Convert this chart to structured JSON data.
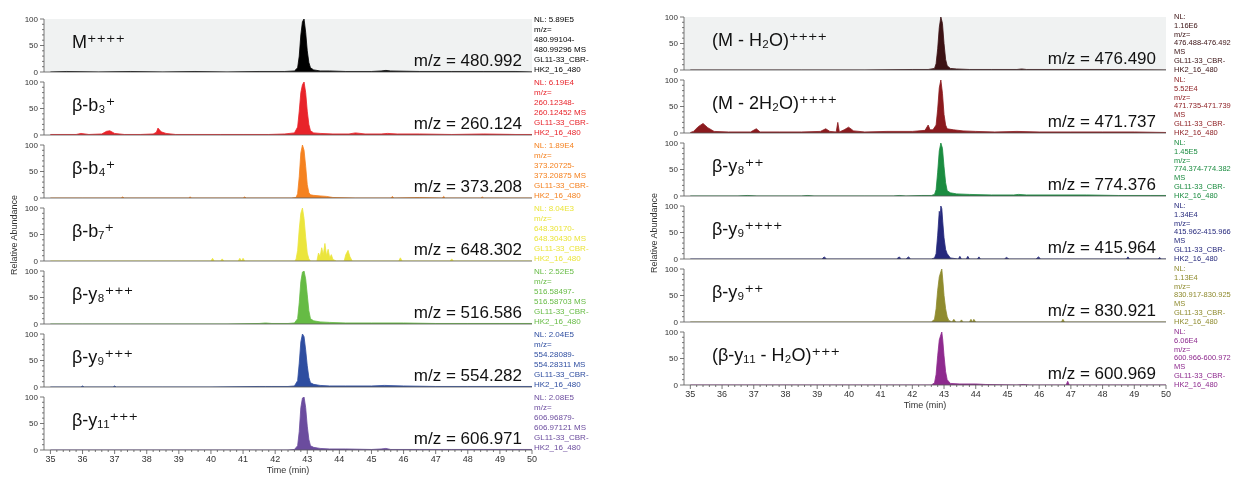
{
  "chart_data": [
    {
      "type": "area",
      "title": "M⁺⁺⁺⁺",
      "annotations": [
        "m/z = 480.992",
        "NL: 5.89E5\nm/z=\n480.99104-\n480.99296 MS\nGL11-33_CBR-\nHK2_16_480"
      ],
      "color": "#000000",
      "x": [
        35,
        35.5,
        36.5,
        37.5,
        38.5,
        39.5,
        40.5,
        41.5,
        42.3,
        42.6,
        42.7,
        42.75,
        42.8,
        42.85,
        42.9,
        42.95,
        43.0,
        43.05,
        43.1,
        43.2,
        43.4,
        43.7,
        44.2,
        45.0,
        45.3,
        45.45,
        45.6,
        46.5,
        47.5,
        48.5,
        49.5,
        50
      ],
      "values": [
        0,
        1,
        0,
        1,
        0,
        1,
        0,
        1,
        1,
        2,
        8,
        30,
        70,
        95,
        100,
        75,
        40,
        18,
        8,
        4,
        2,
        2,
        1,
        1,
        2,
        3,
        2,
        1,
        1,
        1,
        1,
        0
      ],
      "bands": [
        {
          "axis": "x",
          "from": 34.8,
          "to": 50,
          "color": "#f0f2f2"
        }
      ],
      "xlim": [
        34.8,
        50
      ],
      "ylim": [
        0,
        100
      ],
      "yticks": [
        0,
        {
          "value": 10,
          "label": null
        },
        {
          "value": 20,
          "label": null
        },
        {
          "value": 30,
          "label": null
        },
        {
          "value": 40,
          "label": null
        },
        50,
        {
          "value": 60,
          "label": null
        },
        {
          "value": 70,
          "label": null
        },
        {
          "value": 80,
          "label": null
        },
        {
          "value": 90,
          "label": null
        },
        100
      ],
      "tick_labels": "y"
    },
    {
      "type": "area",
      "title": "β-b₃⁺",
      "annotations": [
        "m/z = 260.124",
        "NL: 6.19E4\nm/z=\n260.12348-\n260.12452 MS\nGL11-33_CBR-\nHK2_16_480"
      ],
      "color": "#e8232a",
      "x": [
        35,
        35.3,
        35.8,
        35.95,
        36.2,
        36.6,
        36.75,
        36.85,
        37.0,
        37.3,
        37.8,
        38.2,
        38.3,
        38.35,
        38.45,
        38.6,
        38.9,
        39.5,
        40.3,
        41.0,
        41.8,
        42.3,
        42.6,
        42.7,
        42.75,
        42.8,
        42.85,
        42.9,
        42.95,
        43.0,
        43.05,
        43.1,
        43.2,
        43.4,
        43.8,
        44.3,
        44.5,
        44.8,
        45.3,
        45.5,
        45.8,
        46.5,
        47.5,
        48.5,
        49.5,
        50
      ],
      "values": [
        1,
        1,
        1,
        3,
        1,
        2,
        7,
        8,
        3,
        1,
        1,
        2,
        5,
        13,
        6,
        3,
        1,
        1,
        1,
        1,
        1,
        2,
        4,
        15,
        45,
        80,
        95,
        100,
        80,
        45,
        20,
        8,
        4,
        3,
        2,
        2,
        4,
        2,
        2,
        3,
        2,
        2,
        1,
        2,
        1,
        1
      ],
      "xlim": [
        34.8,
        50
      ],
      "ylim": [
        0,
        100
      ],
      "yticks": [
        0,
        {
          "value": 10,
          "label": null
        },
        {
          "value": 20,
          "label": null
        },
        {
          "value": 30,
          "label": null
        },
        {
          "value": 40,
          "label": null
        },
        50,
        {
          "value": 60,
          "label": null
        },
        {
          "value": 70,
          "label": null
        },
        {
          "value": 80,
          "label": null
        },
        {
          "value": 90,
          "label": null
        },
        100
      ],
      "tick_labels": "y"
    },
    {
      "type": "area",
      "title": "β-b₄⁺",
      "annotations": [
        "m/z = 373.208",
        "NL: 1.89E4\nm/z=\n373.20725-\n373.20875 MS\nGL11-33_CBR-\nHK2_16_480"
      ],
      "color": "#f58220",
      "x": [
        35,
        36.0,
        37.2,
        37.25,
        37.3,
        39.3,
        39.35,
        39.4,
        41.0,
        41.05,
        41.1,
        42.5,
        42.65,
        42.7,
        42.75,
        42.8,
        42.85,
        42.9,
        42.95,
        43.0,
        43.05,
        43.1,
        43.2,
        43.4,
        43.6,
        43.8,
        44.5,
        45.6,
        45.65,
        45.7,
        46.5,
        47.2,
        47.25,
        47.3,
        48.4,
        48.45,
        48.5,
        50
      ],
      "values": [
        0,
        0,
        0,
        2,
        0,
        0,
        2,
        0,
        0,
        2,
        0,
        0,
        1,
        8,
        40,
        85,
        100,
        90,
        60,
        25,
        10,
        6,
        5,
        4,
        3,
        1,
        0,
        0,
        3,
        0,
        1,
        0,
        3,
        0,
        0,
        2,
        0,
        0
      ],
      "xlim": [
        34.8,
        50
      ],
      "ylim": [
        0,
        100
      ],
      "yticks": [
        0,
        {
          "value": 10,
          "label": null
        },
        {
          "value": 20,
          "label": null
        },
        {
          "value": 30,
          "label": null
        },
        {
          "value": 40,
          "label": null
        },
        50,
        {
          "value": 60,
          "label": null
        },
        {
          "value": 70,
          "label": null
        },
        {
          "value": 80,
          "label": null
        },
        {
          "value": 90,
          "label": null
        },
        100
      ],
      "tick_labels": "y"
    },
    {
      "type": "area",
      "title": "β-b₇⁺",
      "annotations": [
        "m/z = 648.302",
        "NL: 8.04E3\nm/z=\n648.30170-\n648.30430 MS\nGL11-33_CBR-\nHK2_16_480"
      ],
      "color": "#ebe53c",
      "x": [
        35,
        40.0,
        40.05,
        40.1,
        40.3,
        40.35,
        40.4,
        40.85,
        40.9,
        40.95,
        41.0,
        41.05,
        42.6,
        42.65,
        42.7,
        42.75,
        42.8,
        42.85,
        42.9,
        42.95,
        43.0,
        43.05,
        43.1,
        43.3,
        43.35,
        43.4,
        43.45,
        43.5,
        43.55,
        43.6,
        43.65,
        43.7,
        43.75,
        43.8,
        43.9,
        44.15,
        44.2,
        44.27,
        44.33,
        44.4,
        45.85,
        45.9,
        45.95,
        47.45,
        47.5,
        47.55,
        50
      ],
      "values": [
        0,
        0,
        5,
        0,
        0,
        4,
        0,
        0,
        5,
        0,
        5,
        0,
        0,
        3,
        20,
        60,
        90,
        100,
        80,
        45,
        15,
        4,
        0,
        0,
        15,
        8,
        25,
        12,
        33,
        10,
        22,
        6,
        12,
        3,
        0,
        0,
        12,
        20,
        8,
        0,
        0,
        6,
        0,
        0,
        4,
        0,
        0
      ],
      "xlim": [
        34.8,
        50
      ],
      "ylim": [
        0,
        100
      ],
      "yticks": [
        0,
        {
          "value": 10,
          "label": null
        },
        {
          "value": 20,
          "label": null
        },
        {
          "value": 30,
          "label": null
        },
        {
          "value": 40,
          "label": null
        },
        50,
        {
          "value": 60,
          "label": null
        },
        {
          "value": 70,
          "label": null
        },
        {
          "value": 80,
          "label": null
        },
        {
          "value": 90,
          "label": null
        },
        100
      ],
      "ylabel": "Relative Abundance",
      "tick_labels": "y"
    },
    {
      "type": "area",
      "title": "β-y₈⁺⁺⁺",
      "annotations": [
        "m/z = 516.586",
        "NL: 2.52E5\nm/z=\n516.58497-\n516.58703 MS\nGL11-33_CBR-\nHK2_16_480"
      ],
      "color": "#66bb44",
      "x": [
        35,
        36,
        37.5,
        39,
        40.5,
        41.5,
        41.7,
        41.9,
        42.4,
        42.6,
        42.7,
        42.75,
        42.8,
        42.85,
        42.9,
        42.95,
        43.0,
        43.05,
        43.1,
        43.2,
        43.4,
        43.7,
        44.2,
        45,
        46,
        47,
        48,
        49,
        50
      ],
      "values": [
        0,
        0,
        0,
        0,
        0,
        1,
        2,
        1,
        1,
        2,
        10,
        40,
        80,
        98,
        100,
        85,
        55,
        25,
        10,
        6,
        4,
        3,
        2,
        2,
        2,
        1,
        1,
        1,
        1
      ],
      "xlim": [
        34.8,
        50
      ],
      "ylim": [
        0,
        100
      ],
      "yticks": [
        0,
        {
          "value": 10,
          "label": null
        },
        {
          "value": 20,
          "label": null
        },
        {
          "value": 30,
          "label": null
        },
        {
          "value": 40,
          "label": null
        },
        50,
        {
          "value": 60,
          "label": null
        },
        {
          "value": 70,
          "label": null
        },
        {
          "value": 80,
          "label": null
        },
        {
          "value": 90,
          "label": null
        },
        100
      ],
      "tick_labels": "y"
    },
    {
      "type": "area",
      "title": "β-y₉⁺⁺⁺",
      "annotations": [
        "m/z = 554.282",
        "NL: 2.04E5\nm/z=\n554.28089-\n554.28311 MS\nGL11-33_CBR-\nHK2_16_480"
      ],
      "color": "#2e4da0",
      "x": [
        35,
        35.95,
        36.0,
        36.05,
        36.95,
        37.0,
        37.05,
        38.5,
        40,
        41.5,
        41.7,
        41.9,
        42.4,
        42.6,
        42.7,
        42.75,
        42.8,
        42.85,
        42.9,
        42.95,
        43.0,
        43.05,
        43.1,
        43.2,
        43.4,
        43.7,
        44.2,
        45,
        45.4,
        46,
        47,
        48,
        49,
        50
      ],
      "values": [
        0,
        0,
        2,
        0,
        0,
        2,
        0,
        0,
        0,
        1,
        1,
        1,
        1,
        2,
        12,
        45,
        85,
        100,
        95,
        70,
        40,
        18,
        8,
        5,
        3,
        2,
        2,
        2,
        3,
        2,
        1,
        1,
        1,
        1
      ],
      "xlim": [
        34.8,
        50
      ],
      "ylim": [
        0,
        100
      ],
      "yticks": [
        0,
        {
          "value": 10,
          "label": null
        },
        {
          "value": 20,
          "label": null
        },
        {
          "value": 30,
          "label": null
        },
        {
          "value": 40,
          "label": null
        },
        50,
        {
          "value": 60,
          "label": null
        },
        {
          "value": 70,
          "label": null
        },
        {
          "value": 80,
          "label": null
        },
        {
          "value": 90,
          "label": null
        },
        100
      ],
      "tick_labels": "y"
    },
    {
      "type": "area",
      "title": "β-y₁₁⁺⁺⁺",
      "annotations": [
        "m/z = 606.971",
        "NL: 2.08E5\nm/z=\n606.96879-\n606.97121 MS\nGL11-33_CBR-\nHK2_16_480"
      ],
      "color": "#6b4c9e",
      "x": [
        35,
        37,
        39.5,
        41.5,
        42.4,
        42.6,
        42.7,
        42.75,
        42.8,
        42.85,
        42.9,
        42.95,
        43.0,
        43.05,
        43.1,
        43.2,
        43.4,
        43.7,
        44.2,
        45,
        45.3,
        45.45,
        45.6,
        46.5,
        47.5,
        48.5,
        49.5,
        50
      ],
      "values": [
        0,
        0,
        0,
        0,
        0,
        1,
        8,
        35,
        80,
        98,
        100,
        80,
        45,
        20,
        8,
        5,
        3,
        2,
        2,
        1,
        2,
        3,
        1,
        1,
        1,
        1,
        1,
        1
      ],
      "xlim": [
        34.8,
        50
      ],
      "ylim": [
        0,
        100
      ],
      "yticks": [
        0,
        {
          "value": 10,
          "label": null
        },
        {
          "value": 20,
          "label": null
        },
        {
          "value": 30,
          "label": null
        },
        {
          "value": 40,
          "label": null
        },
        50,
        {
          "value": 60,
          "label": null
        },
        {
          "value": 70,
          "label": null
        },
        {
          "value": 80,
          "label": null
        },
        {
          "value": 90,
          "label": null
        },
        100
      ],
      "xlabel": "Time (min)",
      "xticks": [
        35,
        {
          "value": 35.2,
          "label": null
        },
        {
          "value": 35.4,
          "label": null
        },
        {
          "value": 35.6,
          "label": null
        },
        {
          "value": 35.8,
          "label": null
        },
        36,
        {
          "value": 36.2,
          "label": null
        },
        {
          "value": 36.4,
          "label": null
        },
        {
          "value": 36.6,
          "label": null
        },
        {
          "value": 36.8,
          "label": null
        },
        37,
        {
          "value": 37.2,
          "label": null
        },
        {
          "value": 37.4,
          "label": null
        },
        {
          "value": 37.6,
          "label": null
        },
        {
          "value": 37.8,
          "label": null
        },
        38,
        {
          "value": 38.2,
          "label": null
        },
        {
          "value": 38.4,
          "label": null
        },
        {
          "value": 38.6,
          "label": null
        },
        {
          "value": 38.8,
          "label": null
        },
        39,
        {
          "value": 39.2,
          "label": null
        },
        {
          "value": 39.4,
          "label": null
        },
        {
          "value": 39.6,
          "label": null
        },
        {
          "value": 39.8,
          "label": null
        },
        40,
        {
          "value": 40.2,
          "label": null
        },
        {
          "value": 40.4,
          "label": null
        },
        {
          "value": 40.6,
          "label": null
        },
        {
          "value": 40.8,
          "label": null
        },
        41,
        {
          "value": 41.2,
          "label": null
        },
        {
          "value": 41.4,
          "label": null
        },
        {
          "value": 41.6,
          "label": null
        },
        {
          "value": 41.8,
          "label": null
        },
        42,
        {
          "value": 42.2,
          "label": null
        },
        {
          "value": 42.4,
          "label": null
        },
        {
          "value": 42.6,
          "label": null
        },
        {
          "value": 42.8,
          "label": null
        },
        43,
        {
          "value": 43.2,
          "label": null
        },
        {
          "value": 43.4,
          "label": null
        },
        {
          "value": 43.6,
          "label": null
        },
        {
          "value": 43.8,
          "label": null
        },
        44,
        {
          "value": 44.2,
          "label": null
        },
        {
          "value": 44.4,
          "label": null
        },
        {
          "value": 44.6,
          "label": null
        },
        {
          "value": 44.8,
          "label": null
        },
        45,
        {
          "value": 45.2,
          "label": null
        },
        {
          "value": 45.4,
          "label": null
        },
        {
          "value": 45.6,
          "label": null
        },
        {
          "value": 45.8,
          "label": null
        },
        46,
        {
          "value": 46.2,
          "label": null
        },
        {
          "value": 46.4,
          "label": null
        },
        {
          "value": 46.6,
          "label": null
        },
        {
          "value": 46.8,
          "label": null
        },
        47,
        {
          "value": 47.2,
          "label": null
        },
        {
          "value": 47.4,
          "label": null
        },
        {
          "value": 47.6,
          "label": null
        },
        {
          "value": 47.8,
          "label": null
        },
        48,
        {
          "value": 48.2,
          "label": null
        },
        {
          "value": 48.4,
          "label": null
        },
        {
          "value": 48.6,
          "label": null
        },
        {
          "value": 48.8,
          "label": null
        },
        49,
        {
          "value": 49.2,
          "label": null
        },
        {
          "value": 49.4,
          "label": null
        },
        {
          "value": 49.6,
          "label": null
        },
        {
          "value": 49.8,
          "label": null
        },
        50
      ]
    },
    {
      "type": "area",
      "title": "(M - H₂O)⁺⁺⁺⁺",
      "annotations": [
        "m/z = 476.490",
        "NL:\n1.16E6\nm/z=\n476.488-476.492\nMS\nGL11-33_CBR-\nHK2_16_480"
      ],
      "color": "#3b1214",
      "x": [
        35,
        36.5,
        38.5,
        40.5,
        42.0,
        42.5,
        42.7,
        42.75,
        42.8,
        42.85,
        42.9,
        42.95,
        43.0,
        43.05,
        43.1,
        43.2,
        43.4,
        43.8,
        44.5,
        45.3,
        45.45,
        45.6,
        46.5,
        48,
        50
      ],
      "values": [
        0,
        0,
        0,
        0,
        1,
        1,
        3,
        12,
        40,
        80,
        100,
        88,
        50,
        20,
        8,
        3,
        2,
        1,
        1,
        1,
        2,
        1,
        1,
        1,
        0
      ],
      "bands": [
        {
          "axis": "x",
          "from": 34.8,
          "to": 50,
          "color": "#f0f2f2"
        }
      ],
      "xlim": [
        34.8,
        50
      ],
      "ylim": [
        0,
        100
      ],
      "yticks": [
        0,
        {
          "value": 10,
          "label": null
        },
        {
          "value": 20,
          "label": null
        },
        {
          "value": 30,
          "label": null
        },
        {
          "value": 40,
          "label": null
        },
        50,
        {
          "value": 60,
          "label": null
        },
        {
          "value": 70,
          "label": null
        },
        {
          "value": 80,
          "label": null
        },
        {
          "value": 90,
          "label": null
        },
        100
      ],
      "tick_labels": "y"
    },
    {
      "type": "area",
      "title": "(M - 2H₂O)⁺⁺⁺⁺",
      "annotations": [
        "m/z = 471.737",
        "NL:\n5.52E4\nm/z=\n471.735-471.739\nMS\nGL11-33_CBR-\nHK2_16_480"
      ],
      "color": "#8b1a1e",
      "x": [
        35,
        35.1,
        35.25,
        35.4,
        35.55,
        35.75,
        36.2,
        36.9,
        37.08,
        37.2,
        37.8,
        38.5,
        39.1,
        39.27,
        39.4,
        39.6,
        39.65,
        39.7,
        39.85,
        39.99,
        40.15,
        40.5,
        41.2,
        42.0,
        42.4,
        42.5,
        42.56,
        42.65,
        42.75,
        42.8,
        42.85,
        42.9,
        42.95,
        43.0,
        43.05,
        43.1,
        43.3,
        43.6,
        44.0,
        44.6,
        45.3,
        46.0,
        47.0,
        48.0,
        49.0,
        50
      ],
      "values": [
        1,
        3,
        12,
        18,
        10,
        3,
        2,
        2,
        8,
        2,
        2,
        2,
        3,
        8,
        3,
        2,
        20,
        2,
        6,
        11,
        4,
        2,
        3,
        3,
        5,
        15,
        6,
        6,
        15,
        45,
        85,
        100,
        75,
        35,
        15,
        8,
        6,
        4,
        3,
        2,
        3,
        2,
        2,
        2,
        2,
        1
      ],
      "xlim": [
        34.8,
        50
      ],
      "ylim": [
        0,
        100
      ],
      "yticks": [
        0,
        {
          "value": 10,
          "label": null
        },
        {
          "value": 20,
          "label": null
        },
        {
          "value": 30,
          "label": null
        },
        {
          "value": 40,
          "label": null
        },
        50,
        {
          "value": 60,
          "label": null
        },
        {
          "value": 70,
          "label": null
        },
        {
          "value": 80,
          "label": null
        },
        {
          "value": 90,
          "label": null
        },
        100
      ],
      "tick_labels": "y"
    },
    {
      "type": "area",
      "title": "β-y₈⁺⁺",
      "annotations": [
        "m/z = 774.376",
        "NL:\n1.45E5\nm/z=\n774.374-774.382\nMS\nGL11-33_CBR-\nHK2_16_480"
      ],
      "color": "#1b8c40",
      "x": [
        35,
        36.5,
        36.8,
        37.1,
        38.5,
        38.7,
        38.9,
        40.5,
        41.4,
        41.6,
        41.8,
        42.3,
        42.6,
        42.7,
        42.75,
        42.8,
        42.85,
        42.9,
        42.95,
        43.0,
        43.05,
        43.1,
        43.2,
        43.4,
        43.8,
        44.5,
        45.2,
        45.35,
        45.6,
        46.5,
        47.5,
        48.5,
        49.5,
        50
      ],
      "values": [
        0,
        0,
        1,
        0,
        0,
        1,
        0,
        0,
        0,
        1,
        0,
        1,
        1,
        3,
        12,
        45,
        85,
        100,
        90,
        55,
        25,
        10,
        6,
        4,
        3,
        2,
        2,
        3,
        2,
        2,
        2,
        1,
        1,
        1
      ],
      "xlim": [
        34.8,
        50
      ],
      "ylim": [
        0,
        100
      ],
      "yticks": [
        0,
        {
          "value": 10,
          "label": null
        },
        {
          "value": 20,
          "label": null
        },
        {
          "value": 30,
          "label": null
        },
        {
          "value": 40,
          "label": null
        },
        50,
        {
          "value": 60,
          "label": null
        },
        {
          "value": 70,
          "label": null
        },
        {
          "value": 80,
          "label": null
        },
        {
          "value": 90,
          "label": null
        },
        100
      ],
      "tick_labels": "y"
    },
    {
      "type": "area",
      "title": "β-y₉⁺⁺⁺⁺",
      "annotations": [
        "m/z = 415.964",
        "NL:\n1.34E4\nm/z=\n415.962-415.966\nMS\nGL11-33_CBR-\nHK2_16_480"
      ],
      "color": "#25287c",
      "x": [
        35,
        39.15,
        39.22,
        39.3,
        41.5,
        41.59,
        41.65,
        41.8,
        41.88,
        41.95,
        42.6,
        42.7,
        42.75,
        42.8,
        42.85,
        42.88,
        42.9,
        42.93,
        42.96,
        43.0,
        43.05,
        43.1,
        43.15,
        43.2,
        43.45,
        43.5,
        43.55,
        43.7,
        43.75,
        43.8,
        44.05,
        44.1,
        44.15,
        44.9,
        44.97,
        45.05,
        45.9,
        45.98,
        46.05,
        48.75,
        48.8,
        48.85,
        49.75,
        49.8,
        49.85,
        50
      ],
      "values": [
        0,
        0,
        4,
        0,
        0,
        4,
        0,
        0,
        4,
        0,
        0,
        2,
        10,
        45,
        90,
        80,
        100,
        95,
        70,
        40,
        18,
        10,
        6,
        2,
        0,
        5,
        0,
        0,
        5,
        0,
        0,
        4,
        0,
        0,
        3,
        0,
        0,
        4,
        0,
        0,
        4,
        0,
        0,
        3,
        0,
        0
      ],
      "xlim": [
        34.8,
        50
      ],
      "ylim": [
        0,
        100
      ],
      "yticks": [
        0,
        {
          "value": 10,
          "label": null
        },
        {
          "value": 20,
          "label": null
        },
        {
          "value": 30,
          "label": null
        },
        {
          "value": 40,
          "label": null
        },
        50,
        {
          "value": 60,
          "label": null
        },
        {
          "value": 70,
          "label": null
        },
        {
          "value": 80,
          "label": null
        },
        {
          "value": 90,
          "label": null
        },
        100
      ],
      "ylabel": "Relative Abundance",
      "tick_labels": "y"
    },
    {
      "type": "area",
      "title": "β-y₉⁺⁺",
      "annotations": [
        "m/z = 830.921",
        "NL:\n1.13E4\nm/z=\n830.917-830.925\nMS\nGL11-33_CBR-\nHK2_16_480"
      ],
      "color": "#8f8b2e",
      "x": [
        35,
        42.0,
        42.6,
        42.7,
        42.75,
        42.8,
        42.85,
        42.9,
        42.93,
        42.96,
        43.0,
        43.05,
        43.1,
        43.15,
        43.25,
        43.31,
        43.37,
        43.5,
        43.55,
        43.6,
        43.8,
        43.85,
        43.9,
        43.94,
        44.0,
        46.7,
        46.75,
        46.8,
        50
      ],
      "values": [
        0,
        0,
        0,
        5,
        25,
        60,
        85,
        95,
        100,
        80,
        50,
        25,
        10,
        3,
        0,
        5,
        0,
        0,
        4,
        0,
        0,
        5,
        0,
        5,
        0,
        0,
        5,
        0,
        0
      ],
      "xlim": [
        34.8,
        50
      ],
      "ylim": [
        0,
        100
      ],
      "yticks": [
        0,
        {
          "value": 10,
          "label": null
        },
        {
          "value": 20,
          "label": null
        },
        {
          "value": 30,
          "label": null
        },
        {
          "value": 40,
          "label": null
        },
        50,
        {
          "value": 60,
          "label": null
        },
        {
          "value": 70,
          "label": null
        },
        {
          "value": 80,
          "label": null
        },
        {
          "value": 90,
          "label": null
        },
        100
      ],
      "tick_labels": "y"
    },
    {
      "type": "area",
      "title": "(β-y₁₁ - H₂O)⁺⁺⁺",
      "annotations": [
        "m/z = 600.969",
        "NL:\n6.06E4\nm/z=\n600.966-600.972\nMS\nGL11-33_CBR-\nHK2_16_480"
      ],
      "color": "#8e2a8e",
      "x": [
        35,
        42.0,
        42.6,
        42.7,
        42.75,
        42.8,
        42.85,
        42.9,
        42.93,
        42.96,
        43.0,
        43.05,
        43.1,
        43.2,
        43.5,
        44.0,
        44.3,
        45.3,
        45.5,
        45.7,
        46.85,
        46.9,
        46.95,
        50
      ],
      "values": [
        0,
        0,
        0,
        4,
        20,
        55,
        85,
        95,
        100,
        85,
        55,
        25,
        10,
        3,
        2,
        2,
        1,
        0,
        1,
        0,
        0,
        7,
        0,
        0
      ],
      "xlim": [
        34.8,
        50
      ],
      "ylim": [
        0,
        100
      ],
      "yticks": [
        0,
        {
          "value": 10,
          "label": null
        },
        {
          "value": 20,
          "label": null
        },
        {
          "value": 30,
          "label": null
        },
        {
          "value": 40,
          "label": null
        },
        50,
        {
          "value": 60,
          "label": null
        },
        {
          "value": 70,
          "label": null
        },
        {
          "value": 80,
          "label": null
        },
        {
          "value": 90,
          "label": null
        },
        100
      ],
      "xlabel": "Time (min)",
      "xticks": [
        35,
        {
          "value": 35.2,
          "label": null
        },
        {
          "value": 35.4,
          "label": null
        },
        {
          "value": 35.6,
          "label": null
        },
        {
          "value": 35.8,
          "label": null
        },
        36,
        {
          "value": 36.2,
          "label": null
        },
        {
          "value": 36.4,
          "label": null
        },
        {
          "value": 36.6,
          "label": null
        },
        {
          "value": 36.8,
          "label": null
        },
        37,
        {
          "value": 37.2,
          "label": null
        },
        {
          "value": 37.4,
          "label": null
        },
        {
          "value": 37.6,
          "label": null
        },
        {
          "value": 37.8,
          "label": null
        },
        38,
        {
          "value": 38.2,
          "label": null
        },
        {
          "value": 38.4,
          "label": null
        },
        {
          "value": 38.6,
          "label": null
        },
        {
          "value": 38.8,
          "label": null
        },
        39,
        {
          "value": 39.2,
          "label": null
        },
        {
          "value": 39.4,
          "label": null
        },
        {
          "value": 39.6,
          "label": null
        },
        {
          "value": 39.8,
          "label": null
        },
        40,
        {
          "value": 40.2,
          "label": null
        },
        {
          "value": 40.4,
          "label": null
        },
        {
          "value": 40.6,
          "label": null
        },
        {
          "value": 40.8,
          "label": null
        },
        41,
        {
          "value": 41.2,
          "label": null
        },
        {
          "value": 41.4,
          "label": null
        },
        {
          "value": 41.6,
          "label": null
        },
        {
          "value": 41.8,
          "label": null
        },
        42,
        {
          "value": 42.2,
          "label": null
        },
        {
          "value": 42.4,
          "label": null
        },
        {
          "value": 42.6,
          "label": null
        },
        {
          "value": 42.8,
          "label": null
        },
        43,
        {
          "value": 43.2,
          "label": null
        },
        {
          "value": 43.4,
          "label": null
        },
        {
          "value": 43.6,
          "label": null
        },
        {
          "value": 43.8,
          "label": null
        },
        44,
        {
          "value": 44.2,
          "label": null
        },
        {
          "value": 44.4,
          "label": null
        },
        {
          "value": 44.6,
          "label": null
        },
        {
          "value": 44.8,
          "label": null
        },
        45,
        {
          "value": 45.2,
          "label": null
        },
        {
          "value": 45.4,
          "label": null
        },
        {
          "value": 45.6,
          "label": null
        },
        {
          "value": 45.8,
          "label": null
        },
        46,
        {
          "value": 46.2,
          "label": null
        },
        {
          "value": 46.4,
          "label": null
        },
        {
          "value": 46.6,
          "label": null
        },
        {
          "value": 46.8,
          "label": null
        },
        47,
        {
          "value": 47.2,
          "label": null
        },
        {
          "value": 47.4,
          "label": null
        },
        {
          "value": 47.6,
          "label": null
        },
        {
          "value": 47.8,
          "label": null
        },
        48,
        {
          "value": 48.2,
          "label": null
        },
        {
          "value": 48.4,
          "label": null
        },
        {
          "value": 48.6,
          "label": null
        },
        {
          "value": 48.8,
          "label": null
        },
        49,
        {
          "value": 49.2,
          "label": null
        },
        {
          "value": 49.4,
          "label": null
        },
        {
          "value": 49.6,
          "label": null
        },
        {
          "value": 49.8,
          "label": null
        },
        50
      ]
    }
  ]
}
